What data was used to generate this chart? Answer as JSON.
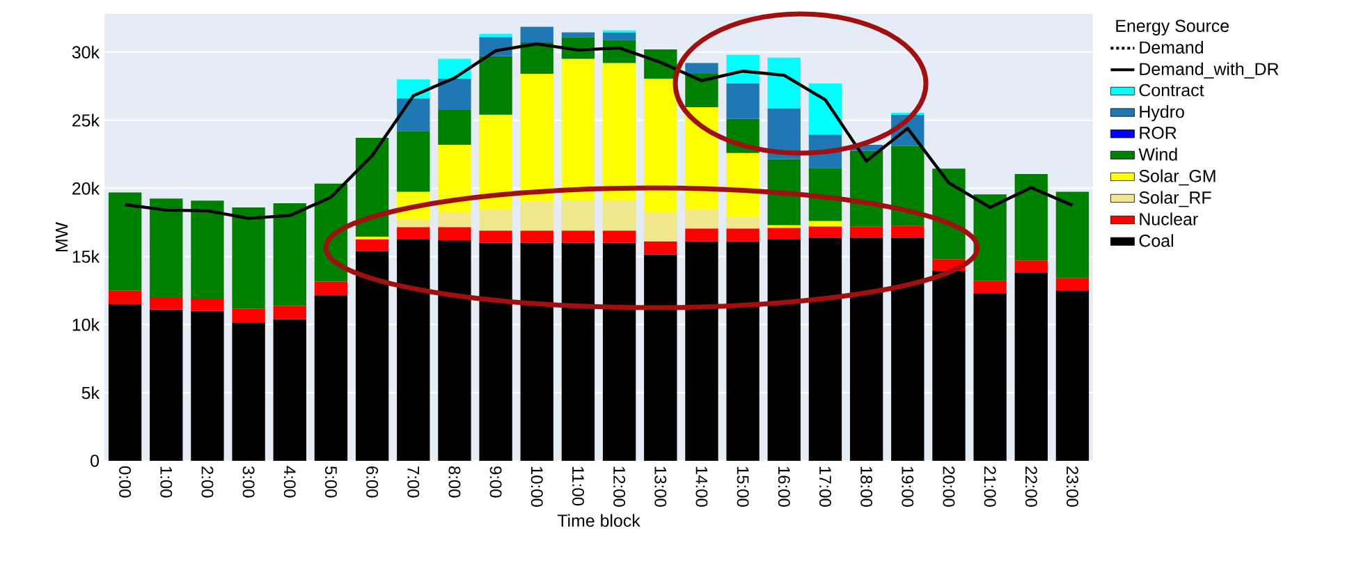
{
  "chart_data": {
    "type": "bar",
    "stacked": true,
    "xlabel": "Time block",
    "ylabel": "MW",
    "legend_title": "Energy Source",
    "legend": "right",
    "grid": "y",
    "categories": [
      "0:00",
      "1:00",
      "2:00",
      "3:00",
      "4:00",
      "5:00",
      "6:00",
      "7:00",
      "8:00",
      "9:00",
      "10:00",
      "11:00",
      "12:00",
      "13:00",
      "14:00",
      "15:00",
      "16:00",
      "17:00",
      "18:00",
      "19:00",
      "20:00",
      "21:00",
      "22:00",
      "23:00"
    ],
    "ylim": [
      0,
      32800
    ],
    "yticks": [
      {
        "value": 0,
        "label": "0"
      },
      {
        "value": 5000,
        "label": "5k"
      },
      {
        "value": 10000,
        "label": "10k"
      },
      {
        "value": 15000,
        "label": "15k"
      },
      {
        "value": 20000,
        "label": "20k"
      },
      {
        "value": 25000,
        "label": "25k"
      },
      {
        "value": 30000,
        "label": "30k"
      }
    ],
    "series": [
      {
        "name": "Coal",
        "color": "#000000",
        "values": [
          11500,
          11100,
          11000,
          10150,
          10400,
          12150,
          15400,
          16250,
          16200,
          16000,
          16000,
          16000,
          16000,
          15150,
          16100,
          16100,
          16250,
          16350,
          16350,
          16350,
          13950,
          12300,
          13800,
          12500
        ]
      },
      {
        "name": "Nuclear",
        "color": "#ff0000",
        "values": [
          1000,
          900,
          850,
          1000,
          950,
          1000,
          850,
          900,
          950,
          900,
          900,
          900,
          900,
          950,
          950,
          950,
          850,
          850,
          850,
          900,
          850,
          900,
          900,
          900
        ]
      },
      {
        "name": "Solar_RF",
        "color": "#f0e68c",
        "values": [
          null,
          null,
          null,
          null,
          null,
          null,
          null,
          550,
          1100,
          1550,
          2100,
          2200,
          2200,
          2150,
          1400,
          850,
          null,
          null,
          null,
          null,
          null,
          null,
          null,
          null
        ]
      },
      {
        "name": "Solar_GM",
        "color": "#ffff00",
        "values": [
          null,
          null,
          null,
          null,
          null,
          null,
          200,
          2050,
          4950,
          6950,
          9400,
          10400,
          10100,
          9800,
          7500,
          4700,
          200,
          400,
          null,
          null,
          null,
          null,
          null,
          null
        ]
      },
      {
        "name": "Wind",
        "color": "#008000",
        "values": [
          7200,
          7250,
          7250,
          7450,
          7550,
          7200,
          7250,
          4450,
          2550,
          4300,
          2300,
          1600,
          1700,
          2150,
          2450,
          2500,
          4850,
          3900,
          5550,
          5850,
          6650,
          6350,
          6350,
          6350
        ]
      },
      {
        "name": "ROR",
        "color": "#0000ff",
        "values": [
          null,
          null,
          null,
          null,
          null,
          null,
          null,
          null,
          null,
          null,
          null,
          null,
          null,
          null,
          null,
          null,
          null,
          null,
          null,
          null,
          null,
          null,
          null,
          null
        ]
      },
      {
        "name": "Hydro",
        "color": "#1f77b4",
        "values": [
          null,
          null,
          null,
          null,
          null,
          null,
          null,
          2400,
          2300,
          1400,
          1150,
          350,
          550,
          null,
          800,
          2600,
          3700,
          2450,
          450,
          2300,
          null,
          null,
          null,
          null
        ]
      },
      {
        "name": "Contract",
        "color": "#00ffff",
        "values": [
          null,
          null,
          null,
          null,
          null,
          null,
          null,
          1400,
          1450,
          250,
          null,
          null,
          150,
          null,
          null,
          2100,
          3750,
          3750,
          null,
          150,
          null,
          null,
          null,
          null
        ]
      },
      {
        "name": "Demand",
        "type": "line",
        "line_style": "dotted",
        "color": "#000000",
        "values": [
          null,
          null,
          null,
          null,
          null,
          null,
          null,
          null,
          null,
          null,
          null,
          null,
          null,
          null,
          null,
          null,
          null,
          null,
          null,
          null,
          null,
          null,
          null,
          null
        ]
      },
      {
        "name": "Demand_with_DR",
        "type": "line",
        "line_style": "solid",
        "color": "#000000",
        "values": [
          18800,
          18400,
          18350,
          17800,
          18000,
          19350,
          22400,
          26800,
          28100,
          30100,
          30600,
          30150,
          30300,
          29250,
          27900,
          28600,
          28300,
          26500,
          22000,
          24400,
          20400,
          18600,
          20050,
          18750
        ]
      }
    ]
  }
}
